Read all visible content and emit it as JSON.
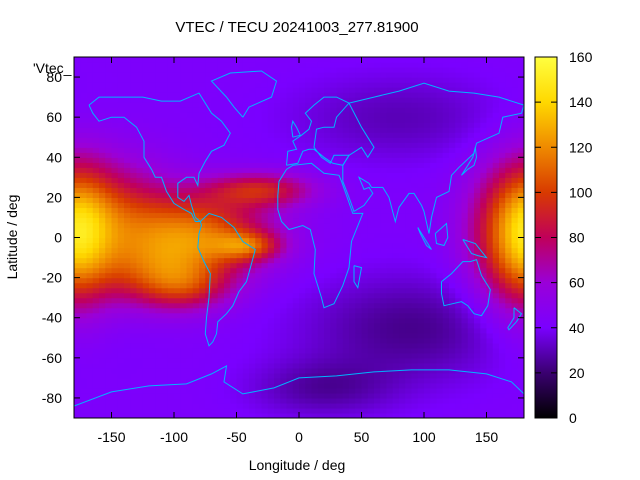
{
  "chart_data": {
    "type": "heatmap",
    "title": "VTEC / TECU 20241003_277.81900",
    "xlabel": "Longitude / deg",
    "ylabel": "Latitude / deg",
    "key_label": "'Vtec_",
    "xlim": [
      -180,
      180
    ],
    "ylim": [
      -90,
      90
    ],
    "x_ticks": [
      -150,
      -100,
      -50,
      0,
      50,
      100,
      150
    ],
    "y_ticks": [
      -80,
      -60,
      -40,
      -20,
      0,
      20,
      40,
      60,
      80
    ],
    "colorbar": {
      "min": 0,
      "max": 160,
      "ticks": [
        0,
        20,
        40,
        60,
        80,
        100,
        120,
        140,
        160
      ]
    },
    "palette": [
      "#000000",
      "#3a0070",
      "#7a00ff",
      "#9a00d8",
      "#c0005a",
      "#d83a00",
      "#ef8a00",
      "#ffd800",
      "#ffff40"
    ],
    "coastline_color": "#00b4ff",
    "grid_resolution_deg": [
      5,
      2.5
    ],
    "field_features": [
      {
        "lon": -80,
        "lat": 2,
        "sigma_lon": 40,
        "sigma_lat": 14,
        "vtec": 65
      },
      {
        "lon": -150,
        "lat": 10,
        "sigma_lon": 35,
        "sigma_lat": 20,
        "vtec": 45
      },
      {
        "lon": -110,
        "lat": -18,
        "sigma_lon": 35,
        "sigma_lat": 12,
        "vtec": 40
      },
      {
        "lon": -90,
        "lat": -25,
        "sigma_lon": 25,
        "sigma_lat": 8,
        "vtec": 25
      },
      {
        "lon": -30,
        "lat": 24,
        "sigma_lon": 30,
        "sigma_lat": 6,
        "vtec": 45
      },
      {
        "lon": -40,
        "lat": -4,
        "sigma_lon": 18,
        "sigma_lat": 5,
        "vtec": 40
      },
      {
        "lon": 170,
        "lat": 0,
        "sigma_lon": 25,
        "sigma_lat": 25,
        "vtec": 50
      },
      {
        "lon": -175,
        "lat": 0,
        "sigma_lon": 18,
        "sigma_lat": 25,
        "vtec": 30
      },
      {
        "lon": 80,
        "lat": 60,
        "sigma_lon": 60,
        "sigma_lat": 15,
        "vtec": -12
      },
      {
        "lon": 90,
        "lat": -45,
        "sigma_lon": 60,
        "sigma_lat": 18,
        "vtec": -18
      },
      {
        "lon": 20,
        "lat": -75,
        "sigma_lon": 40,
        "sigma_lat": 10,
        "vtec": -15
      }
    ],
    "background_vtec": 42
  }
}
